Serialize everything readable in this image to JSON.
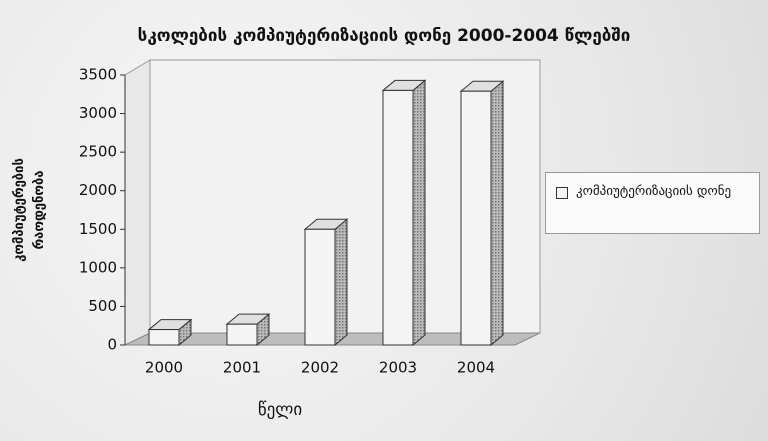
{
  "chart_data": {
    "type": "bar3d",
    "title": "სკოლების კომპიუტერიზაციის დონე 2000-2004 წლებში",
    "y_label": "კომპიუტერების რაოდენობა",
    "x_label": "წელი",
    "categories": [
      "2000",
      "2001",
      "2002",
      "2003",
      "2004"
    ],
    "series": [
      {
        "name": "კომპიუტერიზაციის დონე",
        "color": "#f4f4f4",
        "values": [
          200,
          270,
          1500,
          3300,
          3290
        ]
      }
    ],
    "ylim": [
      0,
      3500
    ],
    "yticks": [
      0,
      500,
      1000,
      1500,
      2000,
      2500,
      3000,
      3500
    ],
    "legend": "right"
  }
}
